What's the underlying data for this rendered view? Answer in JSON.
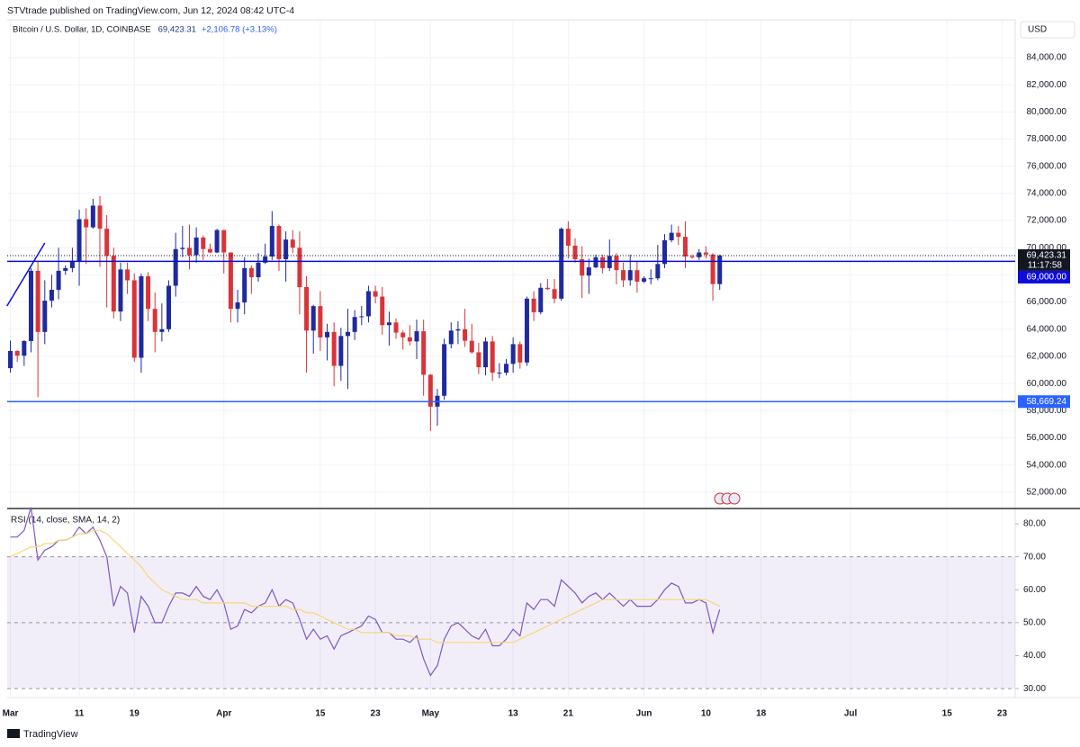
{
  "header": {
    "publisher": "STVtrade published on TradingView.com, Jun 12, 2024 08:42 UTC-4",
    "symbol": "Bitcoin / U.S. Dollar, 1D, COINBASE",
    "change": "+2,106.78 (+3.13%)",
    "currency": "USD",
    "brand": "TradingView"
  },
  "chart_data": [
    {
      "type": "candlestick",
      "up_color": "#1f2a9e",
      "down_color": "#d8343a",
      "grid": true,
      "xlim": [
        -0.46,
        145.9
      ],
      "xticks": [
        {
          "value": 0,
          "label": "Mar"
        },
        {
          "value": 10,
          "label": "11"
        },
        {
          "value": 18,
          "label": "19"
        },
        {
          "value": 31,
          "label": "Apr"
        },
        {
          "value": 45,
          "label": "15"
        },
        {
          "value": 53,
          "label": "23"
        },
        {
          "value": 61,
          "label": "May"
        },
        {
          "value": 73,
          "label": "13"
        },
        {
          "value": 81,
          "label": "21"
        },
        {
          "value": 92,
          "label": "Jun"
        },
        {
          "value": 101,
          "label": "10"
        },
        {
          "value": 109,
          "label": "18"
        },
        {
          "value": 122,
          "label": "Jul"
        },
        {
          "value": 136,
          "label": "15"
        },
        {
          "value": 144,
          "label": "23"
        }
      ],
      "ylim": [
        50800,
        86780
      ],
      "yticks": [
        {
          "value": 52000,
          "label": "52,000.00"
        },
        {
          "value": 54000,
          "label": "54,000.00"
        },
        {
          "value": 56000,
          "label": "56,000.00"
        },
        {
          "value": 58000,
          "label": "58,000.00"
        },
        {
          "value": 60000,
          "label": "60,000.00"
        },
        {
          "value": 62000,
          "label": "62,000.00"
        },
        {
          "value": 64000,
          "label": "64,000.00"
        },
        {
          "value": 66000,
          "label": "66,000.00"
        },
        {
          "value": 68000,
          "label": "68,000.00"
        },
        {
          "value": 70000,
          "label": "70,000.00"
        },
        {
          "value": 72000,
          "label": "72,000.00"
        },
        {
          "value": 74000,
          "label": "74,000.00"
        },
        {
          "value": 76000,
          "label": "76,000.00"
        },
        {
          "value": 78000,
          "label": "78,000.00"
        },
        {
          "value": 80000,
          "label": "80,000.00"
        },
        {
          "value": 82000,
          "label": "82,000.00"
        },
        {
          "value": 84000,
          "label": "84,000.00"
        }
      ],
      "last_price": {
        "value": 69423.31,
        "label": "69,423.31",
        "countdown": "11:17:58",
        "color": "#131722"
      },
      "levels": [
        {
          "value": 69000,
          "label": "69,000.00",
          "color": "#0d0ddb"
        },
        {
          "value": 58669.24,
          "label": "58,669.24",
          "color": "#2962ff"
        }
      ],
      "trendline": {
        "x": [
          -0.5,
          5
        ],
        "y": [
          65700,
          70350
        ],
        "color": "#0d0ddb"
      },
      "ohlc": [
        [
          61130,
          63170,
          60800,
          62400
        ],
        [
          62400,
          62450,
          61600,
          62050
        ],
        [
          62050,
          63200,
          61300,
          63130
        ],
        [
          63130,
          68500,
          62300,
          68300
        ],
        [
          68300,
          69000,
          59000,
          63800
        ],
        [
          63800,
          67600,
          62900,
          66100
        ],
        [
          66100,
          68000,
          65600,
          66900
        ],
        [
          66900,
          70000,
          66200,
          68300
        ],
        [
          68300,
          68700,
          68000,
          68500
        ],
        [
          68500,
          70000,
          68200,
          69000
        ],
        [
          69000,
          72800,
          67200,
          72100
        ],
        [
          72100,
          72900,
          68800,
          71500
        ],
        [
          71500,
          73600,
          71400,
          73100
        ],
        [
          73100,
          73800,
          68600,
          71400
        ],
        [
          71400,
          72400,
          65600,
          69400
        ],
        [
          69400,
          70000,
          64800,
          65300
        ],
        [
          65300,
          68900,
          64600,
          68400
        ],
        [
          68400,
          68900,
          66600,
          67600
        ],
        [
          67600,
          68100,
          61600,
          61900
        ],
        [
          61900,
          68100,
          60800,
          67900
        ],
        [
          67900,
          68200,
          64600,
          65500
        ],
        [
          65500,
          66700,
          62300,
          63800
        ],
        [
          63800,
          65900,
          63100,
          64000
        ],
        [
          64000,
          67600,
          63800,
          67200
        ],
        [
          67200,
          71100,
          66400,
          69900
        ],
        [
          69900,
          71600,
          69300,
          69990
        ],
        [
          69990,
          71700,
          68400,
          69450
        ],
        [
          69450,
          71500,
          68900,
          70750
        ],
        [
          70750,
          70900,
          69100,
          69900
        ],
        [
          69900,
          70300,
          69600,
          69650
        ],
        [
          69650,
          71400,
          69600,
          71300
        ],
        [
          71300,
          71300,
          68100,
          69650
        ],
        [
          69650,
          69650,
          64500,
          65500
        ],
        [
          65500,
          66900,
          64500,
          65970
        ],
        [
          65970,
          69300,
          65100,
          68500
        ],
        [
          68500,
          68700,
          66600,
          67830
        ],
        [
          67830,
          69600,
          67500,
          68900
        ],
        [
          68900,
          70300,
          68800,
          69350
        ],
        [
          69350,
          72700,
          69100,
          71600
        ],
        [
          71600,
          71700,
          68300,
          69150
        ],
        [
          69150,
          71200,
          67500,
          70600
        ],
        [
          70600,
          71300,
          69600,
          70000
        ],
        [
          70000,
          71200,
          65100,
          67100
        ],
        [
          67100,
          67900,
          60800,
          63900
        ],
        [
          63900,
          65800,
          62200,
          65700
        ],
        [
          65700,
          66800,
          62400,
          63400
        ],
        [
          63400,
          64400,
          61700,
          63800
        ],
        [
          63800,
          64500,
          59800,
          61300
        ],
        [
          61300,
          64100,
          60200,
          63500
        ],
        [
          63500,
          65500,
          59600,
          63800
        ],
        [
          63800,
          65400,
          63200,
          64900
        ],
        [
          64900,
          65700,
          64300,
          64950
        ],
        [
          64950,
          67200,
          64500,
          66800
        ],
        [
          66800,
          67200,
          65900,
          66400
        ],
        [
          66400,
          67100,
          63600,
          64300
        ],
        [
          64300,
          65300,
          62800,
          64500
        ],
        [
          64500,
          64800,
          63300,
          63750
        ],
        [
          63750,
          63900,
          62500,
          63400
        ],
        [
          63400,
          64300,
          62800,
          63100
        ],
        [
          63100,
          64700,
          61800,
          63850
        ],
        [
          63850,
          64700,
          59100,
          60650
        ],
        [
          60650,
          60700,
          56500,
          58300
        ],
        [
          58300,
          59600,
          56900,
          59100
        ],
        [
          59100,
          63300,
          58800,
          62900
        ],
        [
          62900,
          64500,
          62600,
          63900
        ],
        [
          63900,
          64600,
          62900,
          64000
        ],
        [
          64000,
          65500,
          62700,
          63150
        ],
        [
          63150,
          64400,
          62200,
          62300
        ],
        [
          62300,
          63000,
          60700,
          61200
        ],
        [
          61200,
          63400,
          60600,
          63100
        ],
        [
          63100,
          63500,
          60200,
          60800
        ],
        [
          60800,
          61500,
          60400,
          60800
        ],
        [
          60800,
          61800,
          60600,
          61450
        ],
        [
          61450,
          63400,
          60800,
          62900
        ],
        [
          62900,
          63100,
          61100,
          61550
        ],
        [
          61550,
          66400,
          61300,
          66250
        ],
        [
          66250,
          66800,
          64600,
          65250
        ],
        [
          65250,
          67400,
          65100,
          67050
        ],
        [
          67050,
          67700,
          66900,
          66950
        ],
        [
          66950,
          67700,
          65900,
          66250
        ],
        [
          66250,
          71500,
          66100,
          71400
        ],
        [
          71400,
          71950,
          69200,
          70150
        ],
        [
          70150,
          70700,
          68900,
          69150
        ],
        [
          69150,
          70100,
          66300,
          67950
        ],
        [
          67950,
          69200,
          66600,
          68550
        ],
        [
          68550,
          69500,
          68500,
          69300
        ],
        [
          69300,
          69500,
          68100,
          68500
        ],
        [
          68500,
          70600,
          68300,
          69400
        ],
        [
          69400,
          69600,
          67300,
          68350
        ],
        [
          68350,
          68900,
          67100,
          67600
        ],
        [
          67600,
          69500,
          67200,
          68350
        ],
        [
          68350,
          69000,
          66700,
          67500
        ],
        [
          67500,
          67900,
          67400,
          67750
        ],
        [
          67750,
          68400,
          67300,
          67750
        ],
        [
          67750,
          70200,
          67600,
          68800
        ],
        [
          68800,
          71000,
          68500,
          70550
        ],
        [
          70550,
          71700,
          70400,
          71100
        ],
        [
          71100,
          71600,
          70200,
          70800
        ],
        [
          70800,
          71950,
          68500,
          69350
        ],
        [
          69350,
          69500,
          69200,
          69300
        ],
        [
          69300,
          69900,
          69100,
          69650
        ],
        [
          69650,
          70100,
          69200,
          69500
        ],
        [
          69500,
          69600,
          66100,
          67320
        ],
        [
          67320,
          69500,
          66900,
          69423.31
        ]
      ]
    },
    {
      "type": "line",
      "title": "RSI (14, close, SMA, 14, 2)",
      "ylim": [
        27.3,
        84.1
      ],
      "yticks": [
        {
          "value": 30,
          "label": "30.00"
        },
        {
          "value": 40,
          "label": "40.00"
        },
        {
          "value": 50,
          "label": "50.00"
        },
        {
          "value": 60,
          "label": "60.00"
        },
        {
          "value": 70,
          "label": "70.00"
        },
        {
          "value": 80,
          "label": "80.00"
        }
      ],
      "band": [
        30,
        70
      ],
      "midline": 50,
      "series": [
        {
          "color": "#7e57c2",
          "values": [
            76,
            76,
            78,
            85,
            69,
            72,
            73,
            75,
            75,
            76,
            79,
            77,
            79,
            75,
            70,
            55,
            61,
            59,
            47,
            58,
            55,
            50,
            50,
            55,
            59,
            59,
            58,
            61,
            58,
            57,
            60,
            56,
            48,
            49,
            54,
            53,
            55,
            56,
            60,
            55,
            57,
            56,
            51,
            45,
            48,
            45,
            46,
            42,
            46,
            47,
            48,
            49,
            52,
            51,
            47,
            47,
            45,
            45,
            44,
            46,
            39,
            34,
            37,
            45,
            49,
            50,
            48,
            46,
            45,
            48,
            43,
            43,
            45,
            48,
            46,
            56,
            54,
            57,
            57,
            55,
            63,
            61,
            59,
            56,
            58,
            59,
            57,
            59,
            57,
            55,
            57,
            55,
            55,
            55,
            57,
            60,
            62,
            61,
            56,
            56,
            57,
            56,
            47,
            54
          ]
        },
        {
          "color": "#f7d774",
          "values": [
            70,
            71,
            72,
            73,
            73,
            74,
            74,
            75,
            75,
            76,
            77,
            77,
            78,
            78,
            77,
            75,
            73,
            71,
            69,
            67,
            64,
            62,
            60,
            59,
            58,
            57,
            57,
            57,
            56,
            56,
            56,
            56,
            56,
            56,
            56,
            55,
            55,
            55,
            55,
            55,
            55,
            54,
            54,
            53,
            53,
            52,
            51,
            50,
            49,
            48,
            48,
            47,
            47,
            47,
            47,
            47,
            46,
            46,
            46,
            45,
            45,
            45,
            44,
            44,
            44,
            44,
            44,
            44,
            44,
            44,
            44,
            44,
            44,
            44,
            45,
            46,
            47,
            48,
            49,
            50,
            51,
            52,
            53,
            54,
            55,
            56,
            57,
            57,
            57,
            57,
            57,
            57,
            57,
            57,
            57,
            57,
            57,
            57,
            57,
            57,
            57,
            57,
            56,
            55
          ]
        }
      ]
    }
  ]
}
